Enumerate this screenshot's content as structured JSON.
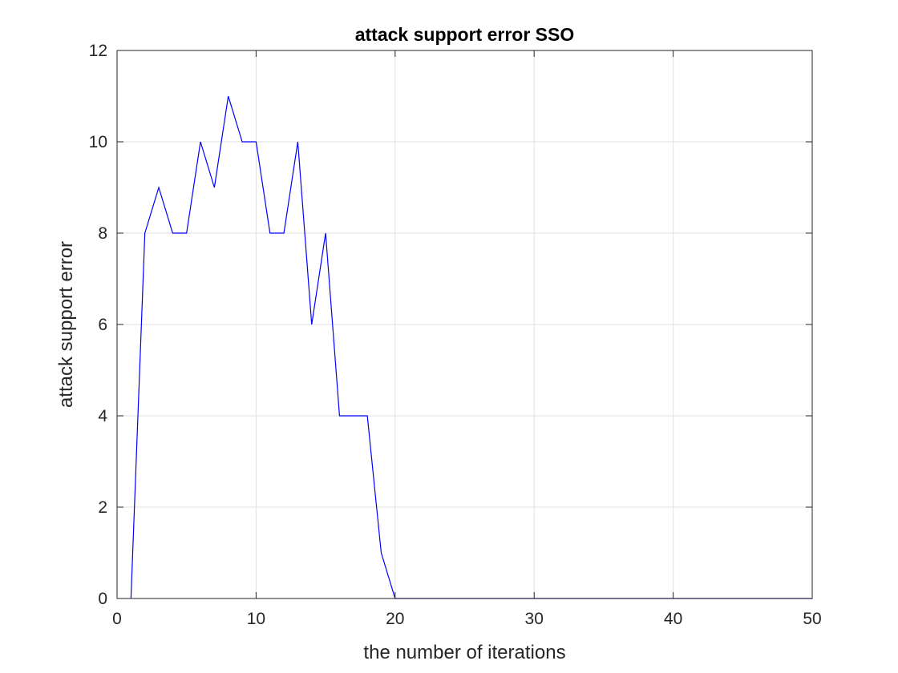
{
  "chart_data": {
    "type": "line",
    "title": "attack support error SSO",
    "xlabel": "the number of iterations",
    "ylabel": "attack support error",
    "xlim": [
      0,
      50
    ],
    "ylim": [
      0,
      12
    ],
    "xticks": [
      0,
      10,
      20,
      30,
      40,
      50
    ],
    "yticks": [
      0,
      2,
      4,
      6,
      8,
      10,
      12
    ],
    "grid": true,
    "series": [
      {
        "color": "#0000ff",
        "x": [
          1,
          2,
          3,
          4,
          5,
          6,
          7,
          8,
          9,
          10,
          11,
          12,
          13,
          14,
          15,
          16,
          17,
          18,
          19,
          20,
          21,
          22,
          23,
          24,
          25,
          26,
          27,
          28,
          29,
          30,
          31,
          32,
          33,
          34,
          35,
          36,
          37,
          38,
          39,
          40,
          41,
          42,
          43,
          44,
          45,
          46,
          47,
          48,
          49,
          50
        ],
        "y": [
          0,
          8,
          9,
          8,
          8,
          10,
          9,
          11,
          10,
          10,
          8,
          8,
          10,
          6,
          8,
          4,
          4,
          4,
          1,
          0,
          0,
          0,
          0,
          0,
          0,
          0,
          0,
          0,
          0,
          0,
          0,
          0,
          0,
          0,
          0,
          0,
          0,
          0,
          0,
          0,
          0,
          0,
          0,
          0,
          0,
          0,
          0,
          0,
          0,
          0
        ]
      }
    ]
  }
}
